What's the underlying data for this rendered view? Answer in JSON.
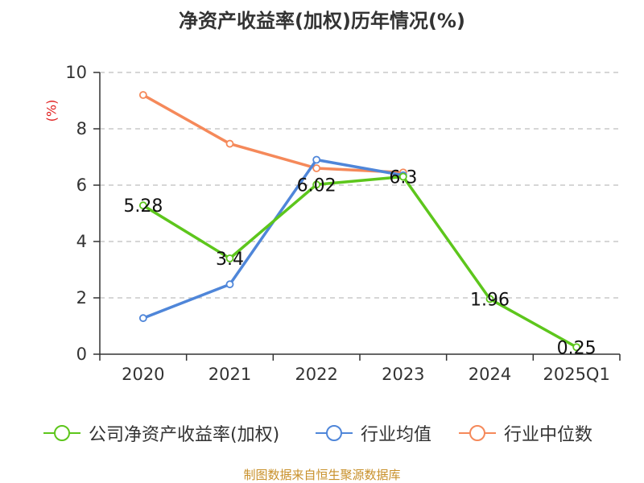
{
  "chart_data": {
    "type": "line",
    "title": "净资产收益率(加权)历年情况(%)",
    "ylabel": "(%)",
    "xlabel": "",
    "categories": [
      "2020",
      "2021",
      "2022",
      "2023",
      "2024",
      "2025Q1"
    ],
    "ylim": [
      0,
      10
    ],
    "yticks": [
      "0",
      "2",
      "4",
      "6",
      "8",
      "10"
    ],
    "grid": true,
    "legend_position": "bottom",
    "series": [
      {
        "name": "公司净资产收益率(加权)",
        "color": "#5dc61c",
        "values": [
          5.28,
          3.4,
          6.02,
          6.3,
          1.96,
          0.25
        ],
        "labels": [
          "5.28",
          "3.4",
          "6.02",
          "6.3",
          "1.96",
          "0.25"
        ]
      },
      {
        "name": "行业均值",
        "color": "#4f86d9",
        "values": [
          1.28,
          2.48,
          6.9,
          6.35,
          null,
          null
        ]
      },
      {
        "name": "行业中位数",
        "color": "#f5895a",
        "values": [
          9.2,
          7.47,
          6.6,
          6.45,
          null,
          null
        ]
      }
    ]
  },
  "source": "制图数据来自恒生聚源数据库"
}
